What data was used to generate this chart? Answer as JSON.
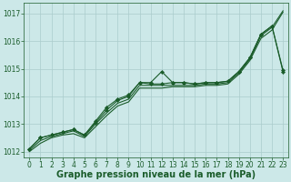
{
  "bg_color": "#cce8e8",
  "grid_color": "#aacccc",
  "line_color": "#1a5c2a",
  "marker_color": "#1a5c2a",
  "xlabel": "Graphe pression niveau de la mer (hPa)",
  "xlabel_fontsize": 7.0,
  "xlabel_color": "#1a5c2a",
  "tick_color": "#1a5c2a",
  "tick_fontsize": 5.5,
  "ylim": [
    1011.8,
    1017.4
  ],
  "xlim": [
    -0.5,
    23.5
  ],
  "yticks": [
    1012,
    1013,
    1014,
    1015,
    1016,
    1017
  ],
  "xticks": [
    0,
    1,
    2,
    3,
    4,
    5,
    6,
    7,
    8,
    9,
    10,
    11,
    12,
    13,
    14,
    15,
    16,
    17,
    18,
    19,
    20,
    21,
    22,
    23
  ],
  "series_with_markers": [
    [
      1012.1,
      1012.5,
      1012.6,
      1012.7,
      1012.8,
      1012.6,
      1013.1,
      1013.6,
      1013.9,
      1014.05,
      1014.5,
      1014.5,
      1014.9,
      1014.5,
      1014.5,
      1014.45,
      1014.5,
      1014.5,
      1014.55,
      1014.9,
      1015.4,
      1016.25,
      1016.55,
      1014.95
    ],
    [
      1012.1,
      1012.5,
      1012.6,
      1012.7,
      1012.8,
      1012.6,
      1013.05,
      1013.5,
      1013.85,
      1014.0,
      1014.5,
      1014.45,
      1014.45,
      1014.5,
      1014.5,
      1014.45,
      1014.5,
      1014.5,
      1014.55,
      1014.9,
      1015.4,
      1016.25,
      1016.55,
      1014.9
    ]
  ],
  "series_no_markers": [
    [
      1012.05,
      1012.4,
      1012.55,
      1012.65,
      1012.75,
      1012.55,
      1013.0,
      1013.4,
      1013.75,
      1013.9,
      1014.4,
      1014.4,
      1014.4,
      1014.4,
      1014.4,
      1014.4,
      1014.45,
      1014.45,
      1014.5,
      1014.85,
      1015.35,
      1016.2,
      1016.5,
      1017.1
    ],
    [
      1012.0,
      1012.3,
      1012.5,
      1012.6,
      1012.65,
      1012.5,
      1012.9,
      1013.3,
      1013.65,
      1013.8,
      1014.3,
      1014.3,
      1014.3,
      1014.35,
      1014.35,
      1014.35,
      1014.4,
      1014.4,
      1014.45,
      1014.8,
      1015.3,
      1016.1,
      1016.4,
      1017.05
    ]
  ]
}
